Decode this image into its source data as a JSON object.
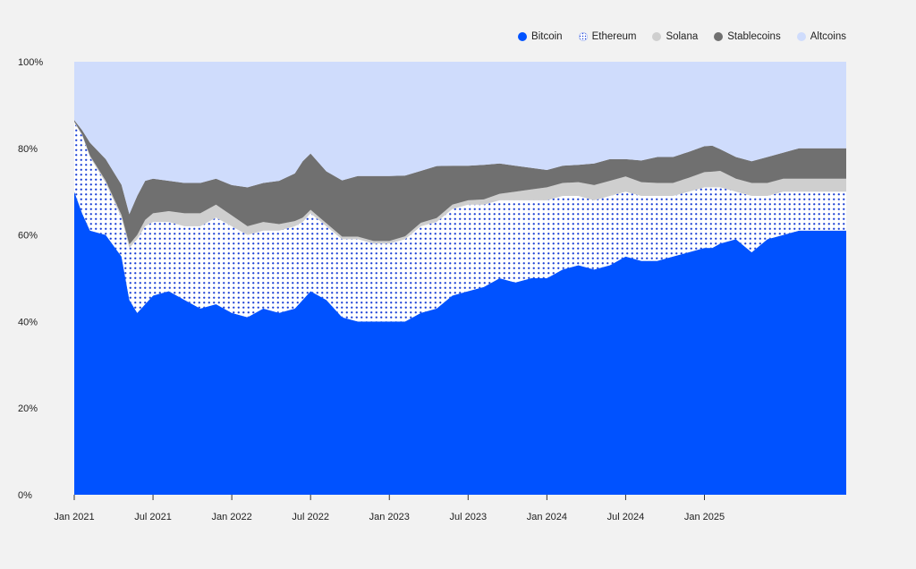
{
  "chart_data": {
    "type": "area",
    "stacked": true,
    "normalized": true,
    "title": "",
    "xlabel": "",
    "ylabel": "",
    "ylim": [
      0,
      100
    ],
    "y_ticks": [
      0,
      20,
      40,
      60,
      80,
      100
    ],
    "y_tick_labels": [
      "0%",
      "20%",
      "40%",
      "60%",
      "80%",
      "100%"
    ],
    "x_range": [
      2021.0,
      2025.9
    ],
    "x_ticks": [
      2021.0,
      2021.5,
      2022.0,
      2022.5,
      2023.0,
      2023.5,
      2024.0,
      2024.5,
      2025.0
    ],
    "x_tick_labels": [
      "Jan 2021",
      "Jul 2021",
      "Jan 2022",
      "Jul 2022",
      "Jan 2023",
      "Jul 2023",
      "Jan 2024",
      "Jul 2024",
      "Jan 2025"
    ],
    "legend_position": "top-right",
    "x": [
      2021.0,
      2021.05,
      2021.1,
      2021.2,
      2021.3,
      2021.35,
      2021.4,
      2021.45,
      2021.5,
      2021.6,
      2021.7,
      2021.8,
      2021.9,
      2022.0,
      2022.1,
      2022.2,
      2022.3,
      2022.4,
      2022.45,
      2022.5,
      2022.6,
      2022.7,
      2022.8,
      2022.9,
      2023.0,
      2023.1,
      2023.2,
      2023.3,
      2023.4,
      2023.5,
      2023.6,
      2023.7,
      2023.8,
      2023.9,
      2024.0,
      2024.1,
      2024.2,
      2024.3,
      2024.4,
      2024.5,
      2024.6,
      2024.7,
      2024.8,
      2024.9,
      2025.0,
      2025.05,
      2025.1,
      2025.2,
      2025.3,
      2025.4,
      2025.5,
      2025.6,
      2025.7,
      2025.8,
      2025.9
    ],
    "series": [
      {
        "name": "Bitcoin",
        "color": "#0052ff",
        "pattern": "solid",
        "values": [
          70,
          65,
          61,
          60,
          55,
          45,
          42,
          44,
          46,
          47,
          45,
          43,
          44,
          42,
          41,
          43,
          42,
          43,
          45,
          47,
          45,
          41,
          40,
          40,
          40,
          40,
          42,
          43,
          46,
          47,
          48,
          50,
          49,
          50,
          50,
          52,
          53,
          52,
          53,
          55,
          54,
          54,
          55,
          56,
          57,
          57,
          58,
          59,
          56,
          59,
          60,
          61,
          61,
          61,
          61
        ]
      },
      {
        "name": "Ethereum",
        "color": "#1a3fd6",
        "pattern": "dots",
        "values": [
          16,
          18,
          17,
          12,
          9,
          12,
          17,
          18,
          17,
          16,
          17,
          19,
          20,
          20,
          19,
          18,
          19,
          19,
          18,
          18,
          17,
          18,
          19,
          18,
          18,
          19,
          20,
          20,
          20,
          20,
          19,
          18,
          19,
          18,
          18,
          17,
          16,
          16,
          16,
          15,
          15,
          15,
          14,
          14,
          14,
          14,
          13,
          11,
          13,
          10,
          10,
          9,
          9,
          9,
          9
        ]
      },
      {
        "name": "Solana",
        "color": "#cfcfcf",
        "pattern": "solid",
        "values": [
          0.2,
          0.2,
          0.3,
          0.5,
          0.6,
          0.8,
          1.0,
          1.5,
          2.0,
          2.5,
          3.0,
          3.0,
          3.0,
          2.5,
          2.0,
          2.0,
          1.5,
          1.2,
          1.0,
          0.8,
          0.7,
          0.6,
          0.6,
          0.6,
          0.6,
          0.7,
          0.8,
          0.9,
          1.0,
          1.0,
          1.2,
          1.5,
          2.0,
          2.5,
          3.0,
          3.0,
          3.2,
          3.5,
          3.5,
          3.5,
          3.2,
          3.0,
          3.0,
          3.2,
          3.5,
          3.6,
          3.8,
          3.0,
          3.0,
          3.0,
          3.0,
          3.0,
          3.0,
          3.0,
          3.0
        ]
      },
      {
        "name": "Stablecoins",
        "color": "#707070",
        "pattern": "solid",
        "values": [
          0.3,
          1,
          3,
          5,
          7,
          7,
          9,
          9,
          8,
          7,
          7,
          7,
          6,
          7,
          9,
          9,
          10,
          11,
          13,
          13,
          12,
          13,
          14,
          15,
          15,
          14,
          12,
          12,
          9,
          8,
          8,
          7,
          6,
          5,
          4,
          4,
          4,
          5,
          5,
          4,
          5,
          6,
          6,
          6,
          6,
          6,
          5,
          5,
          5,
          6,
          6,
          7,
          7,
          7,
          7
        ]
      },
      {
        "name": "Altcoins",
        "color": "#cfdcfc",
        "pattern": "solid",
        "values": [
          13.5,
          15.8,
          18.7,
          22.5,
          28.4,
          35.2,
          31.0,
          27.5,
          27.0,
          27.5,
          28.0,
          28.0,
          27.0,
          28.5,
          29.0,
          28.0,
          27.5,
          25.8,
          23.0,
          21.2,
          25.3,
          27.4,
          26.4,
          26.4,
          26.4,
          26.3,
          25.2,
          24.1,
          24.0,
          24.0,
          23.8,
          23.5,
          24.0,
          24.5,
          25.0,
          24.0,
          23.8,
          23.5,
          22.5,
          22.5,
          22.8,
          22.0,
          22.0,
          20.8,
          19.5,
          19.4,
          20.2,
          22.0,
          23.0,
          22.0,
          21.0,
          20.0,
          20.0,
          20.0,
          20.0
        ]
      }
    ]
  }
}
